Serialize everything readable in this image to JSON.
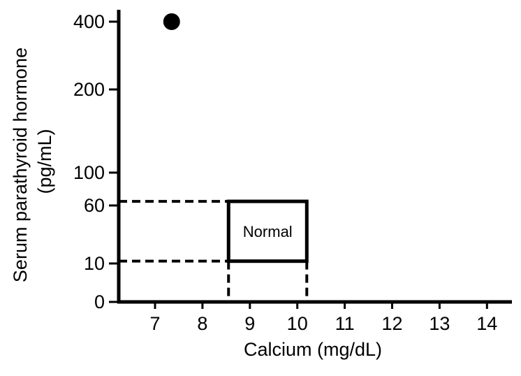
{
  "chart_data": {
    "type": "scatter",
    "xlabel": "Calcium (mg/dL)",
    "ylabel_line1": "Serum parathyroid hormone",
    "ylabel_line2": "(pg/mL)",
    "x_ticks": [
      7,
      8,
      9,
      10,
      11,
      12,
      13,
      14
    ],
    "y_ticks": [
      0,
      10,
      60,
      100,
      200,
      400
    ],
    "xlim": [
      6.2,
      14.6
    ],
    "y_scale": "nonlinear (labeled ticks only)",
    "grid": false,
    "points": [
      {
        "x": 7.35,
        "y": 400
      }
    ],
    "normal_range": {
      "label": "Normal",
      "calcium_min": 8.55,
      "calcium_max": 10.2,
      "pth_min": 12,
      "pth_max": 65
    },
    "colors": {
      "axis": "#000000",
      "marker": "#000000",
      "background": "#ffffff"
    }
  }
}
